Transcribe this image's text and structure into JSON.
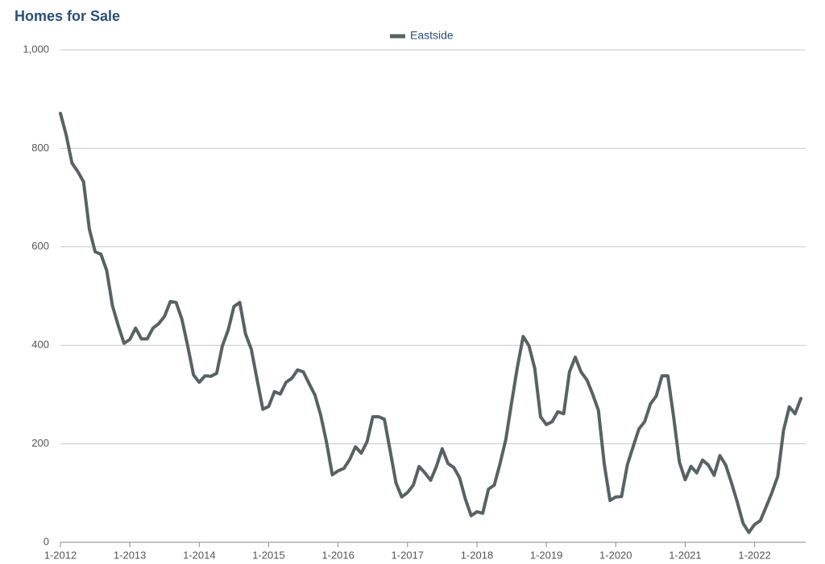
{
  "chart_data": {
    "type": "line",
    "title": "Homes for Sale",
    "categories": [
      "1-2012",
      null,
      null,
      null,
      null,
      null,
      null,
      null,
      null,
      null,
      null,
      null,
      "1-2013",
      null,
      null,
      null,
      null,
      null,
      null,
      null,
      null,
      null,
      null,
      null,
      "1-2014",
      null,
      null,
      null,
      null,
      null,
      null,
      null,
      null,
      null,
      null,
      null,
      "1-2015",
      null,
      null,
      null,
      null,
      null,
      null,
      null,
      null,
      null,
      null,
      null,
      "1-2016",
      null,
      null,
      null,
      null,
      null,
      null,
      null,
      null,
      null,
      null,
      null,
      "1-2017",
      null,
      null,
      null,
      null,
      null,
      null,
      null,
      null,
      null,
      null,
      null,
      "1-2018",
      null,
      null,
      null,
      null,
      null,
      null,
      null,
      null,
      null,
      null,
      null,
      "1-2019",
      null,
      null,
      null,
      null,
      null,
      null,
      null,
      null,
      null,
      null,
      null,
      "1-2020",
      null,
      null,
      null,
      null,
      null,
      null,
      null,
      null,
      null,
      null,
      null,
      "1-2021",
      null,
      null,
      null,
      null,
      null,
      null,
      null,
      null,
      null,
      null,
      null,
      "1-2022",
      null,
      null,
      null,
      null,
      null,
      null,
      null,
      null
    ],
    "series": [
      {
        "name": "Eastside",
        "color": "#596263",
        "values": [
          871,
          827,
          770,
          753,
          732,
          636,
          590,
          585,
          552,
          480,
          440,
          404,
          412,
          435,
          413,
          413,
          435,
          444,
          459,
          489,
          487,
          453,
          399,
          340,
          325,
          338,
          337,
          343,
          399,
          431,
          479,
          487,
          423,
          392,
          330,
          270,
          276,
          306,
          301,
          325,
          333,
          350,
          346,
          322,
          299,
          258,
          203,
          137,
          145,
          150,
          168,
          194,
          181,
          204,
          255,
          255,
          250,
          186,
          121,
          92,
          101,
          116,
          154,
          141,
          126,
          154,
          190,
          160,
          152,
          131,
          88,
          54,
          62,
          59,
          108,
          116,
          160,
          209,
          284,
          356,
          418,
          399,
          353,
          255,
          239,
          245,
          265,
          261,
          346,
          376,
          346,
          330,
          301,
          268,
          160,
          85,
          92,
          93,
          157,
          194,
          230,
          245,
          281,
          297,
          338,
          338,
          255,
          163,
          127,
          154,
          141,
          167,
          157,
          136,
          176,
          157,
          121,
          82,
          39,
          20,
          36,
          44,
          72,
          101,
          134,
          227,
          275,
          261,
          292
        ]
      }
    ],
    "ylim": [
      0,
      1000
    ],
    "yticks": [
      0,
      200,
      400,
      600,
      800,
      {
        "value": 1000,
        "label": "1,000"
      }
    ],
    "grid": true,
    "legend": "top"
  }
}
